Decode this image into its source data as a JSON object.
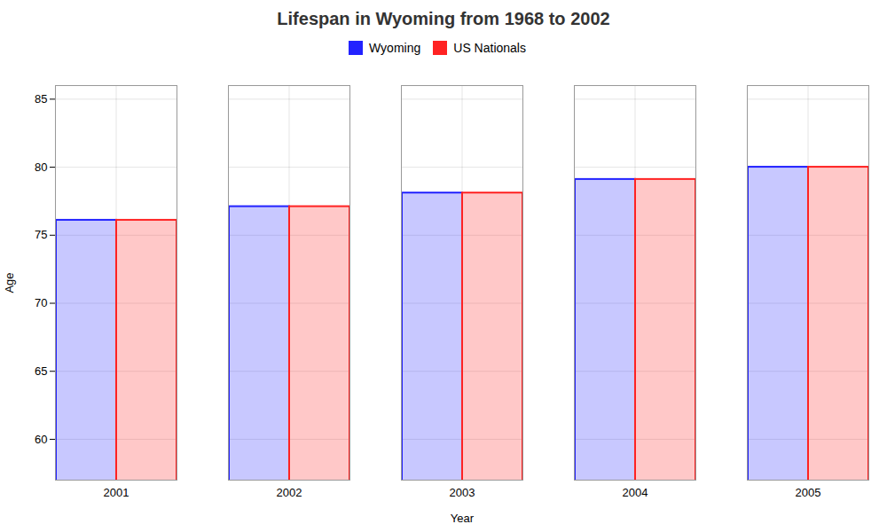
{
  "chart_data": {
    "type": "bar",
    "title": "Lifespan in Wyoming from 1968 to 2002",
    "xlabel": "Year",
    "ylabel": "Age",
    "categories": [
      "2001",
      "2002",
      "2003",
      "2004",
      "2005"
    ],
    "series": [
      {
        "name": "Wyoming",
        "color": "#2222ff",
        "values": [
          76.1,
          77.1,
          78.1,
          79.1,
          80.0
        ]
      },
      {
        "name": "US Nationals",
        "color": "#ff2222",
        "values": [
          76.1,
          77.1,
          78.1,
          79.1,
          80.0
        ]
      }
    ],
    "ylim": [
      57,
      86
    ],
    "yticks": [
      60,
      65,
      70,
      75,
      80,
      85
    ],
    "grid": true,
    "legend": "top"
  }
}
